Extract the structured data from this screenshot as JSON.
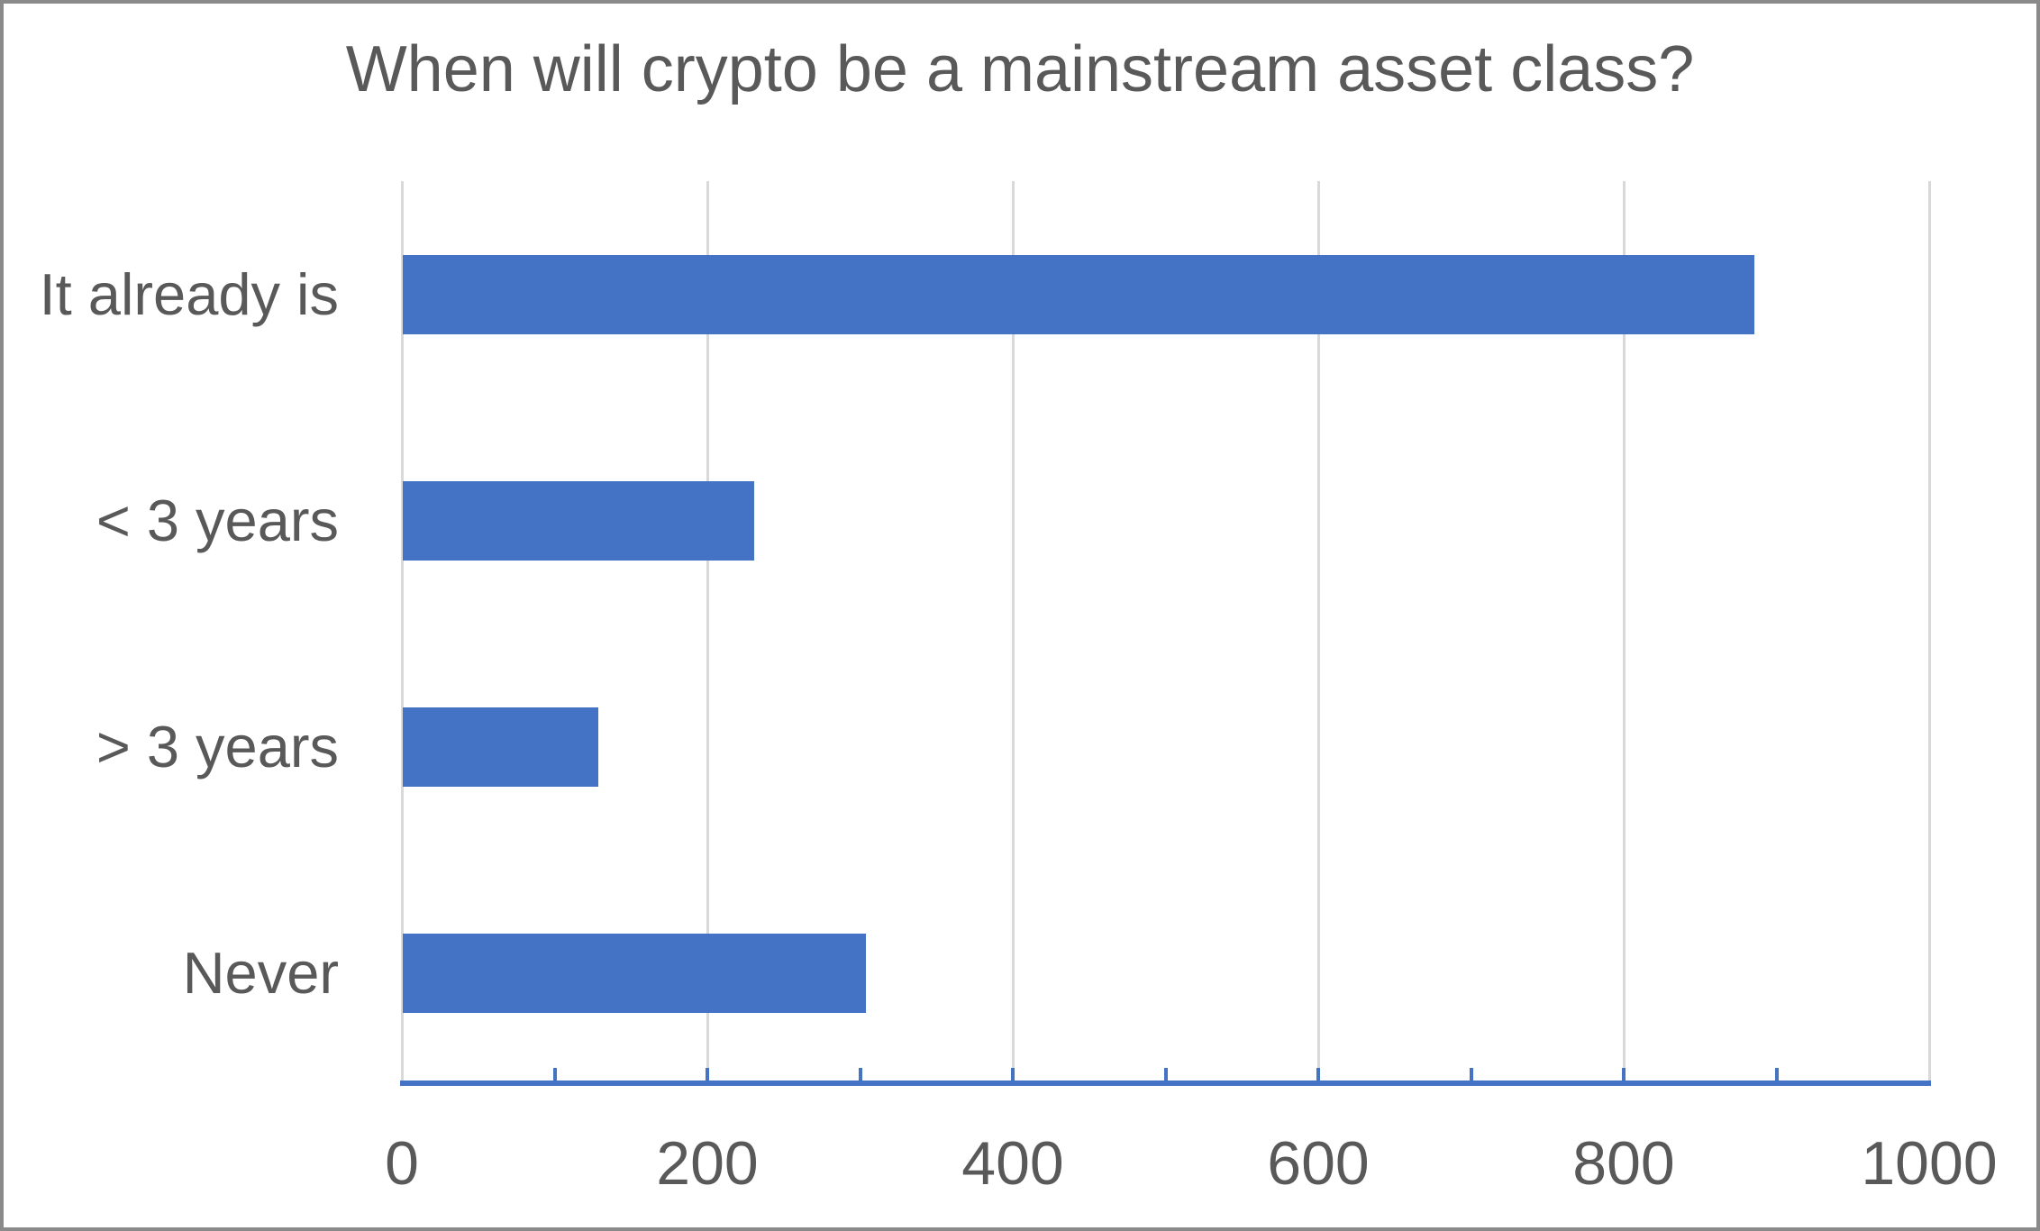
{
  "window": {
    "background": "#ffffff",
    "border_color": "#8a8a8a"
  },
  "chart_data": {
    "type": "bar",
    "orientation": "horizontal",
    "title": "When will crypto be a mainstream asset class?",
    "categories": [
      "It already is",
      "< 3 years",
      "> 3 years",
      "Never"
    ],
    "values": [
      885,
      230,
      128,
      303
    ],
    "xlabel": "",
    "ylabel": "",
    "xlim": [
      0,
      1000
    ],
    "x_ticks": [
      0,
      200,
      400,
      600,
      800,
      1000
    ],
    "x_tick_labels": [
      "0",
      "200",
      "400",
      "600",
      "800",
      "1000"
    ],
    "x_minor_tick_interval": 100,
    "grid": "vertical-major-on",
    "legend": "none",
    "bar_color": "#4472C4",
    "axis_line_color": "#4472C4",
    "gridline_color": "#D9D9D9",
    "text_color": "#595959"
  }
}
